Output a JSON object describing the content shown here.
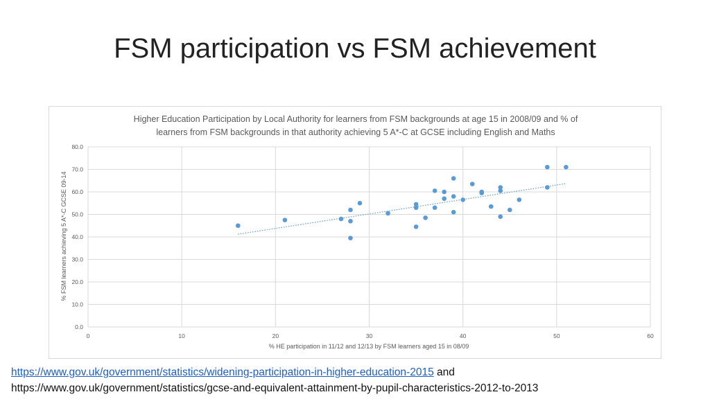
{
  "slide": {
    "title": "FSM participation vs FSM achievement"
  },
  "chart_data": {
    "type": "scatter",
    "title_line1": "Higher Education Participation by Local Authority for learners from FSM backgrounds at age 15 in 2008/09 and % of",
    "title_line2": "learners from FSM backgrounds in that authority achieving 5 A*-C at GCSE including English and Maths",
    "xlabel": "% HE participation in 11/12 and 12/13 by FSM learners aged 15 in 08/09",
    "ylabel": "% FSM learners achieving 5 A*-C GCSE 09-14",
    "xlim": [
      0,
      60
    ],
    "ylim": [
      0,
      80
    ],
    "x_ticks": [
      0,
      10,
      20,
      30,
      40,
      50,
      60
    ],
    "y_ticks": [
      "0.0",
      "10.0",
      "20.0",
      "30.0",
      "40.0",
      "50.0",
      "60.0",
      "70.0",
      "80.0"
    ],
    "grid": true,
    "trendline": {
      "type": "linear",
      "x_start": 16,
      "y_start": 41.2,
      "x_end": 51,
      "y_end": 63.7,
      "style": "dotted"
    },
    "point_color": "#5b9bd5",
    "series": [
      {
        "x": [
          16,
          21,
          27,
          28,
          28,
          28,
          29,
          32,
          35,
          35,
          35,
          36,
          37,
          37,
          38,
          38,
          39,
          39,
          39,
          40,
          41,
          42,
          42,
          43,
          44,
          44,
          44,
          45,
          46,
          49,
          49,
          51
        ],
        "y": [
          45.0,
          47.5,
          48.0,
          52.0,
          47.0,
          39.5,
          55.0,
          50.5,
          54.5,
          53.0,
          44.5,
          48.5,
          60.5,
          53.0,
          60.0,
          57.0,
          66.0,
          58.0,
          51.0,
          56.5,
          63.5,
          60.0,
          59.5,
          53.5,
          62.0,
          60.5,
          49.0,
          52.0,
          56.5,
          71.0,
          62.0,
          71.0
        ]
      }
    ]
  },
  "sources": {
    "link_text": "https://www.gov.uk/government/statistics/widening-participation-in-higher-education-2015",
    "and_text": "and",
    "line2_text": "https://www.gov.uk/government/statistics/gcse-and-equivalent-attainment-by-pupil-characteristics-2012-to-2013"
  }
}
